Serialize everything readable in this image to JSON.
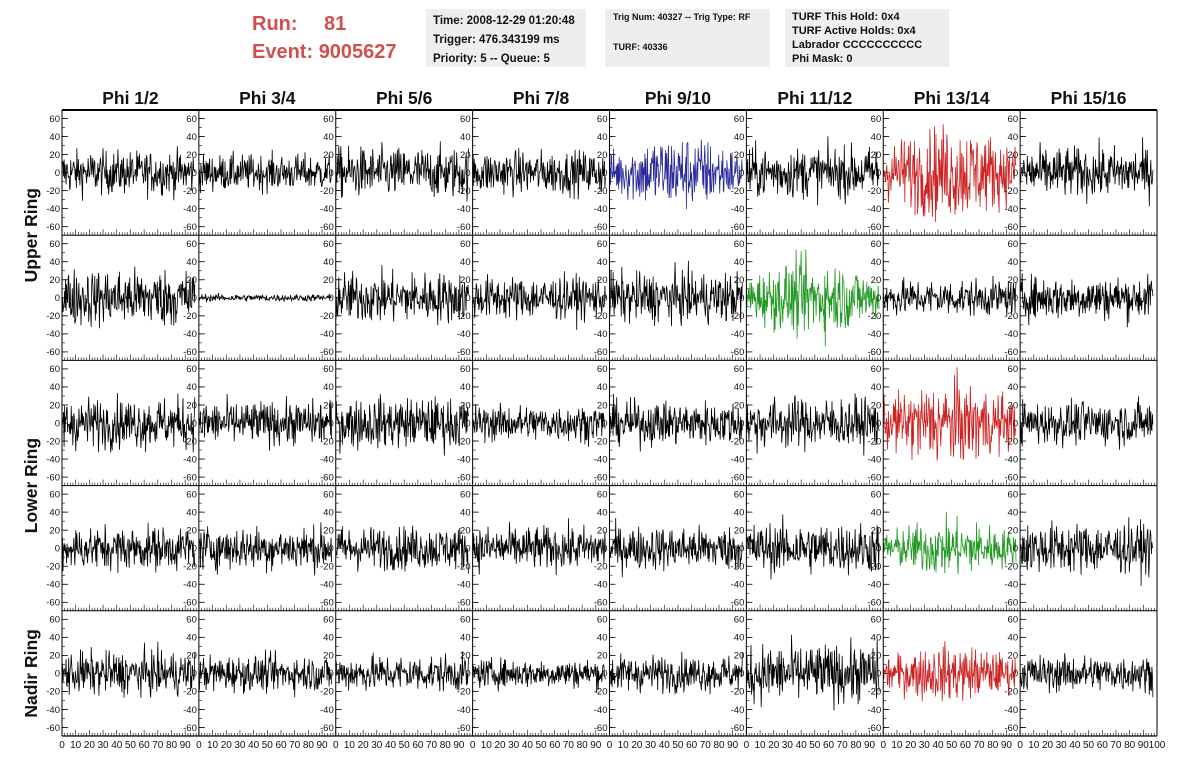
{
  "header": {
    "run_label": "Run:",
    "run_value": "81",
    "event_label": "Event:",
    "event_value": "9005627",
    "time_line": "Time: 2008-12-29 01:20:48",
    "trigger_line": "Trigger: 476.343199 ms",
    "priority_line": "Priority: 5 -- Queue: 5",
    "trig_line": "Trig Num: 40327 -- Trig Type: RF",
    "turf_line": "TURF: 40336",
    "turf_hold_line": "TURF This Hold: 0x4",
    "turf_active_line": "TURF Active Holds: 0x4",
    "labrador_line": "Labrador CCCCCCCCCC",
    "phi_mask_line": "Phi Mask: 0"
  },
  "chart_data": {
    "type": "line",
    "columns": [
      "Phi 1/2",
      "Phi 3/4",
      "Phi 5/6",
      "Phi 7/8",
      "Phi 9/10",
      "Phi 11/12",
      "Phi 13/14",
      "Phi 15/16"
    ],
    "ring_labels": [
      "Upper Ring",
      "Lower Ring",
      "Nadir Ring"
    ],
    "rows": 5,
    "ylim": [
      -65,
      65
    ],
    "xlim": [
      0,
      100
    ],
    "y_ticks": [
      -60,
      -40,
      -20,
      0,
      20,
      40,
      60
    ],
    "y_tick_labels": [
      "-60",
      "-40",
      "-20",
      "0",
      "20",
      "40",
      "60"
    ],
    "x_ticks": [
      0,
      10,
      20,
      30,
      40,
      50,
      60,
      70,
      80,
      90,
      100
    ],
    "x_tick_labels": [
      "0",
      "10",
      "20",
      "30",
      "40",
      "50",
      "60",
      "70",
      "80",
      "90",
      "100"
    ],
    "last_x_tick_label": "100",
    "colors": {
      "default": "#000000",
      "blue": "#2a2a9a",
      "red": "#cc2222",
      "green": "#229922"
    },
    "highlights": [
      {
        "row": 0,
        "col": 4,
        "color": "blue"
      },
      {
        "row": 0,
        "col": 6,
        "color": "red"
      },
      {
        "row": 1,
        "col": 5,
        "color": "green"
      },
      {
        "row": 2,
        "col": 6,
        "color": "red"
      },
      {
        "row": 3,
        "col": 6,
        "color": "green"
      },
      {
        "row": 4,
        "col": 6,
        "color": "red"
      }
    ],
    "amplitudes": [
      [
        12,
        10,
        14,
        12,
        16,
        14,
        20,
        14
      ],
      [
        16,
        2,
        14,
        12,
        14,
        16,
        10,
        12
      ],
      [
        14,
        12,
        14,
        10,
        12,
        14,
        18,
        12
      ],
      [
        12,
        12,
        12,
        12,
        12,
        14,
        12,
        14
      ],
      [
        12,
        10,
        10,
        8,
        10,
        16,
        12,
        10
      ]
    ],
    "samples_per_trace": 260
  }
}
